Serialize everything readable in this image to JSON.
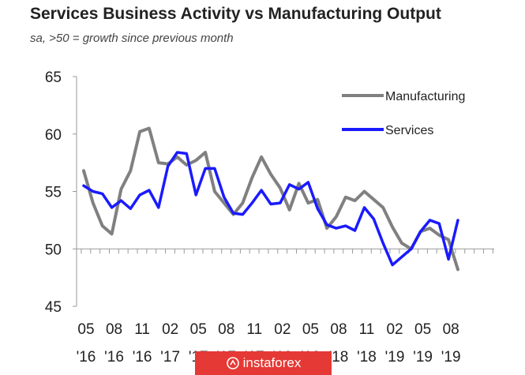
{
  "header": {
    "title": "Services Business Activity vs Manufacturing Output",
    "subtitle": "sa, >50 = growth since previous month"
  },
  "watermark": {
    "text": "instaforex",
    "icon": "instaforex-logo-icon",
    "color": "#e53935"
  },
  "chart_data": {
    "type": "line",
    "title": "Services Business Activity vs Manufacturing Output",
    "subtitle": "sa, >50 = growth since previous month",
    "xlabel": "",
    "ylabel": "",
    "ylim": [
      45,
      65
    ],
    "yticks": [
      45,
      50,
      55,
      60,
      65
    ],
    "baseline": 50,
    "grid": false,
    "legend_position": "top-right",
    "x_tick_labels": [
      {
        "month": "05",
        "year": "'16",
        "index": 0
      },
      {
        "month": "08",
        "year": "'16",
        "index": 3
      },
      {
        "month": "11",
        "year": "'16",
        "index": 6
      },
      {
        "month": "02",
        "year": "'17",
        "index": 9
      },
      {
        "month": "05",
        "year": "'17",
        "index": 12
      },
      {
        "month": "08",
        "year": "'17",
        "index": 15
      },
      {
        "month": "11",
        "year": "'17",
        "index": 18
      },
      {
        "month": "02",
        "year": "'18",
        "index": 21
      },
      {
        "month": "05",
        "year": "'18",
        "index": 24
      },
      {
        "month": "08",
        "year": "'18",
        "index": 27
      },
      {
        "month": "11",
        "year": "'18",
        "index": 30
      },
      {
        "month": "02",
        "year": "'19",
        "index": 33
      },
      {
        "month": "05",
        "year": "'19",
        "index": 36
      },
      {
        "month": "08",
        "year": "'19",
        "index": 39
      }
    ],
    "x": [
      "2016-05",
      "2016-06",
      "2016-07",
      "2016-08",
      "2016-09",
      "2016-10",
      "2016-11",
      "2016-12",
      "2017-01",
      "2017-02",
      "2017-03",
      "2017-04",
      "2017-05",
      "2017-06",
      "2017-07",
      "2017-08",
      "2017-09",
      "2017-10",
      "2017-11",
      "2017-12",
      "2018-01",
      "2018-02",
      "2018-03",
      "2018-04",
      "2018-05",
      "2018-06",
      "2018-07",
      "2018-08",
      "2018-09",
      "2018-10",
      "2018-11",
      "2018-12",
      "2019-01",
      "2019-02",
      "2019-03",
      "2019-04",
      "2019-05",
      "2019-06",
      "2019-07",
      "2019-08",
      "2019-09"
    ],
    "series": [
      {
        "name": "Manufacturing",
        "color": "#808080",
        "values": [
          56.8,
          54.0,
          52.0,
          51.3,
          55.2,
          56.8,
          60.2,
          60.5,
          57.5,
          57.4,
          58.0,
          57.3,
          57.7,
          58.4,
          55.0,
          54.0,
          53.0,
          54.0,
          56.2,
          58.0,
          56.5,
          55.3,
          53.4,
          55.7,
          54.0,
          54.3,
          51.8,
          52.8,
          54.5,
          54.2,
          55.0,
          54.3,
          53.6,
          51.9,
          50.5,
          50.0,
          51.5,
          51.8,
          51.2,
          50.8,
          48.2
        ]
      },
      {
        "name": "Services",
        "color": "#1a1aff",
        "values": [
          55.5,
          55.0,
          54.8,
          53.6,
          54.2,
          53.5,
          54.7,
          55.1,
          53.6,
          57.2,
          58.4,
          58.3,
          54.7,
          57.0,
          57.0,
          54.5,
          53.1,
          53.0,
          54.0,
          55.1,
          53.9,
          54.0,
          55.6,
          55.2,
          55.8,
          53.5,
          52.1,
          51.8,
          52.0,
          51.6,
          53.6,
          52.6,
          50.5,
          48.6,
          49.3,
          50.0,
          51.5,
          52.5,
          52.2,
          49.1,
          52.5
        ]
      }
    ]
  }
}
